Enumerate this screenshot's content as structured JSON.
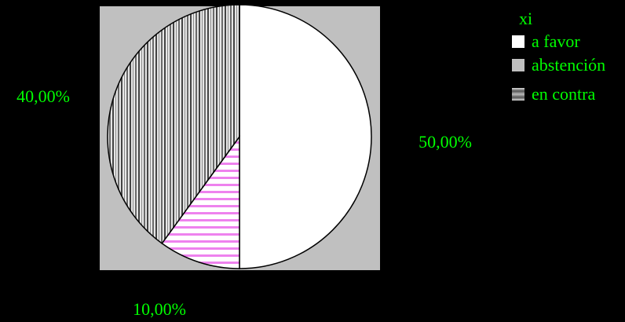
{
  "chart_data": {
    "type": "pie",
    "slices": [
      {
        "label": "a favor",
        "value": 50,
        "data_label": "50,00%",
        "fill": "#ffffff",
        "pattern": "solid"
      },
      {
        "label": "abstención",
        "value": 10,
        "data_label": "10,00%",
        "fill": "#ffffff",
        "pattern": "pink-horizontal-stripes"
      },
      {
        "label": "en contra",
        "value": 40,
        "data_label": "40,00%",
        "fill": "#ffffff",
        "pattern": "gray-vertical-stripes"
      }
    ],
    "legend": {
      "title": "xi",
      "placement": "top-right",
      "entries": [
        {
          "label": "a favor",
          "swatch": "#ffffff"
        },
        {
          "label": "abstención",
          "swatch": "#c0c0c0"
        },
        {
          "label": "en contra",
          "swatch": "striped-gray"
        }
      ]
    },
    "start_angle": "12 o'clock, clockwise"
  },
  "colors": {
    "page_background": "#000000",
    "plot_area": "#c0c0c0",
    "label_text": "#00ff00",
    "outline": "#000000",
    "pink_stripe": "#ee82ee",
    "gray_stripe": "#555555"
  }
}
